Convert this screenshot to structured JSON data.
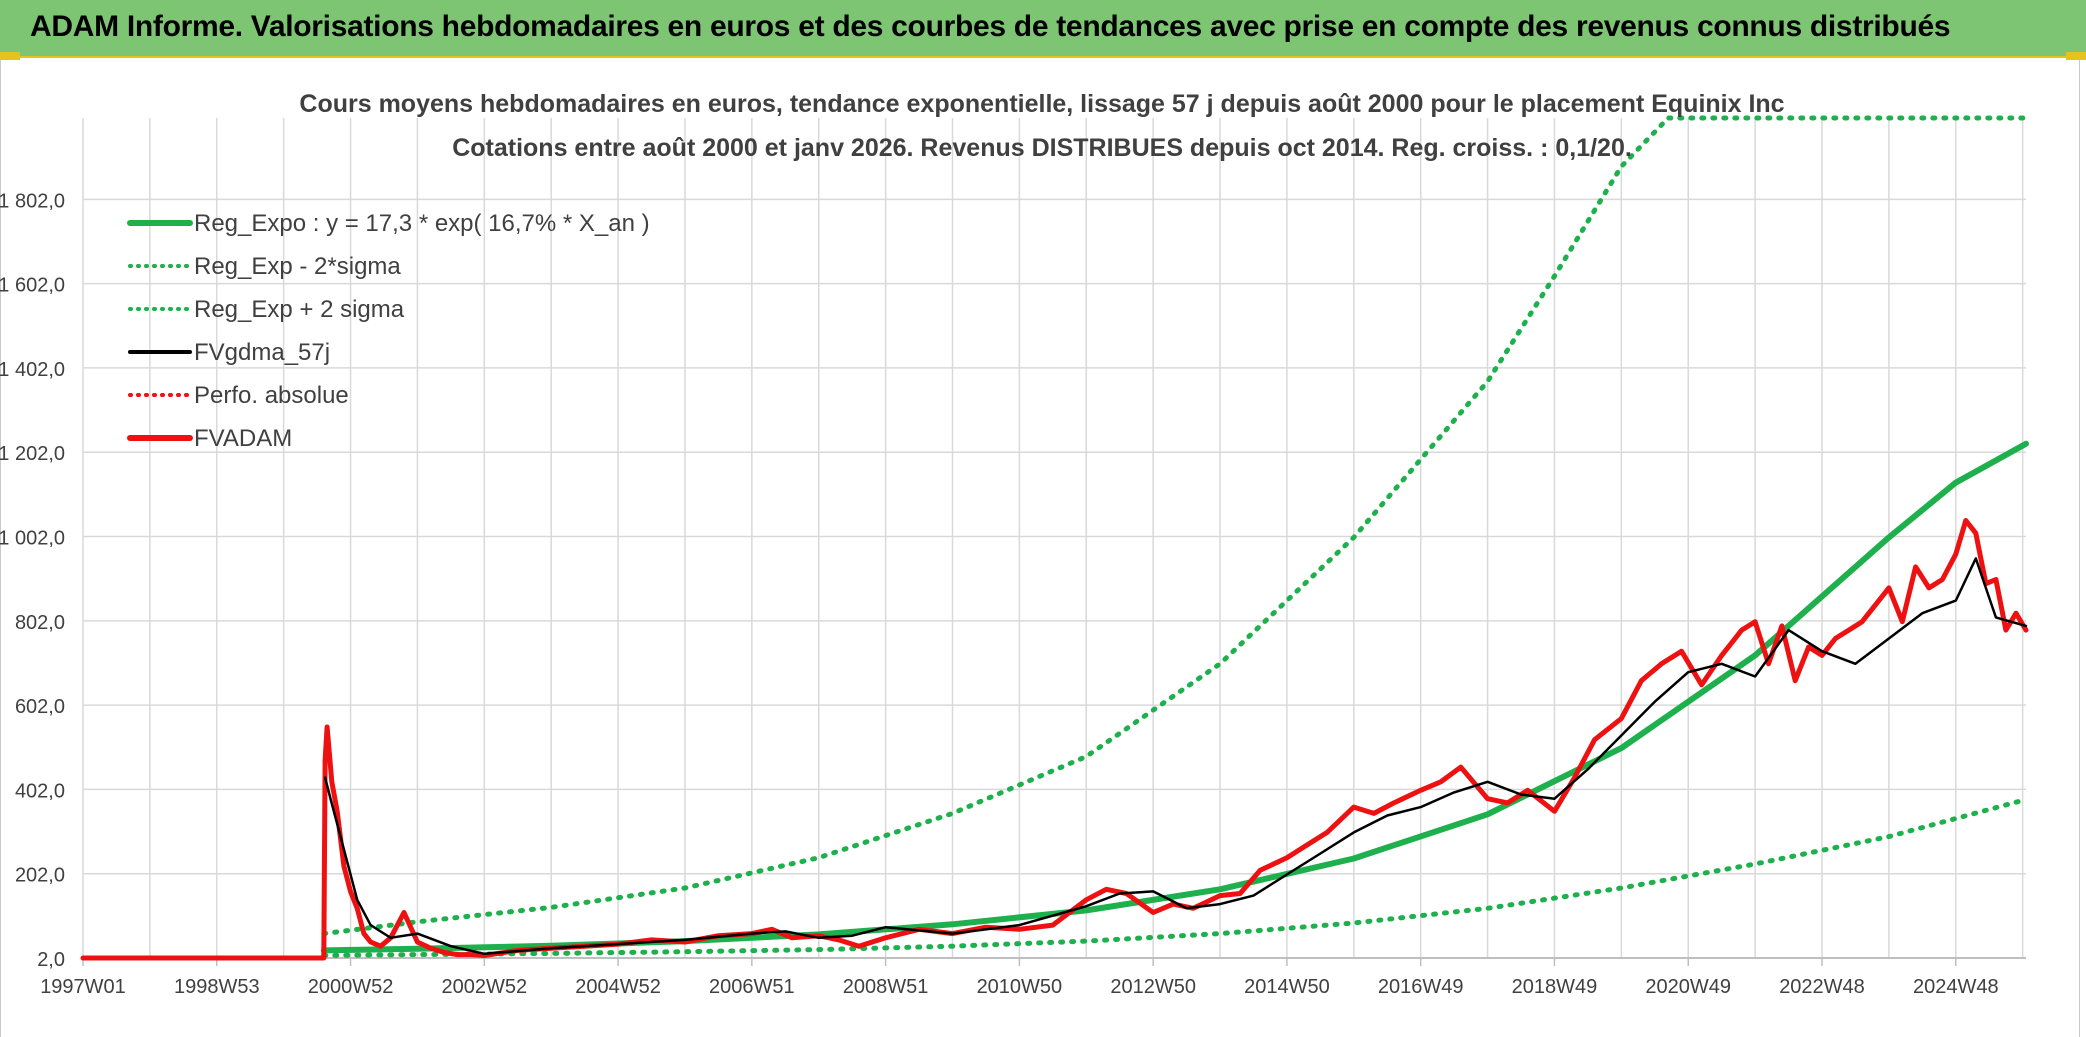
{
  "header": {
    "title": "ADAM Informe. Valorisations hebdomadaires en euros et des courbes de tendances avec prise en compte des revenus connus distribués"
  },
  "colors": {
    "banner": "#7dc572",
    "accent": "#e6c21c",
    "green": "#1fb04e",
    "red": "#ee1111",
    "black": "#000000",
    "grid": "#d9d9d9",
    "text": "#404040"
  },
  "chart_data": {
    "type": "line",
    "title_line1": "Cours moyens hebdomadaires en euros, tendance exponentielle, lissage 57 j depuis août 2000 pour le placement Equinix Inc",
    "title_line2": "Cotations entre août 2000 et janv 2026. Revenus DISTRIBUES depuis oct 2014. Reg. croiss. : 0,1/20.",
    "xlabel": "",
    "ylabel": "",
    "x_range": [
      1997.0,
      2026.05
    ],
    "ylim": [
      2.0,
      1995.0
    ],
    "grid": true,
    "legend_position": "top-left",
    "x_tick_labels": [
      "1997W01",
      "1998W53",
      "2000W52",
      "2002W52",
      "2004W52",
      "2006W51",
      "2008W51",
      "2010W50",
      "2012W50",
      "2014W50",
      "2016W49",
      "2018W49",
      "2020W49",
      "2022W48",
      "2024W48"
    ],
    "x_tick_values": [
      1997.0,
      1999.0,
      2001.0,
      2003.0,
      2005.0,
      2007.0,
      2009.0,
      2011.0,
      2013.0,
      2015.0,
      2017.0,
      2019.0,
      2021.0,
      2023.0,
      2025.0
    ],
    "y_tick_labels": [
      "2,0",
      "202,0",
      "402,0",
      "602,0",
      "802,0",
      "1 002,0",
      "1 202,0",
      "1 402,0",
      "1 602,0",
      "1 802,0"
    ],
    "y_tick_values": [
      2,
      202,
      402,
      602,
      802,
      1002,
      1202,
      1402,
      1602,
      1802
    ],
    "legend": [
      {
        "label": "Reg_Expo : y = 17,3 * exp( 16,7% *  X_an )",
        "color": "#1fb04e",
        "style": "solid-thick"
      },
      {
        "label": "Reg_Exp - 2*sigma",
        "color": "#1fb04e",
        "style": "dotted"
      },
      {
        "label": "Reg_Exp + 2 sigma",
        "color": "#1fb04e",
        "style": "dotted"
      },
      {
        "label": "FVgdma_57j",
        "color": "#000000",
        "style": "solid"
      },
      {
        "label": "Perfo. absolue",
        "color": "#ee1111",
        "style": "dotted"
      },
      {
        "label": "FVADAM",
        "color": "#ee1111",
        "style": "solid-thick"
      }
    ],
    "series": [
      {
        "name": "Reg_Expo",
        "x": [
          2000.6,
          2002.0,
          2004.0,
          2006.0,
          2008.0,
          2010.0,
          2012.0,
          2014.0,
          2016.0,
          2018.0,
          2020.0,
          2022.0,
          2024.0,
          2025.0,
          2026.05
        ],
        "y": [
          20,
          24,
          31,
          42,
          58,
          82,
          115,
          165,
          238,
          343,
          500,
          720,
          1000,
          1130,
          1222
        ]
      },
      {
        "name": "Reg_Exp - 2*sigma",
        "x": [
          2000.6,
          2002.0,
          2004.0,
          2006.0,
          2008.0,
          2010.0,
          2012.0,
          2014.0,
          2016.0,
          2018.0,
          2020.0,
          2022.0,
          2024.0,
          2026.05
        ],
        "y": [
          8,
          10,
          13,
          17,
          22,
          30,
          42,
          60,
          85,
          120,
          168,
          225,
          290,
          378
        ]
      },
      {
        "name": "Reg_Exp + 2 sigma",
        "x": [
          2000.6,
          2002.0,
          2004.0,
          2006.0,
          2008.0,
          2010.0,
          2012.0,
          2014.0,
          2016.0,
          2018.0,
          2019.0,
          2020.0,
          2020.7,
          2021.05,
          2022.0,
          2024.0,
          2026.05
        ],
        "y": [
          60,
          88,
          122,
          168,
          240,
          345,
          480,
          700,
          1000,
          1370,
          1620,
          1880,
          1995,
          1995,
          1995,
          1995,
          1995
        ]
      },
      {
        "name": "FVgdma_57j",
        "x": [
          2000.62,
          2000.7,
          2000.9,
          2001.1,
          2001.3,
          2001.6,
          2002.0,
          2002.5,
          2003.0,
          2004.0,
          2005.0,
          2006.0,
          2007.0,
          2007.5,
          2008.0,
          2008.5,
          2009.0,
          2010.0,
          2011.0,
          2012.0,
          2012.5,
          2013.0,
          2013.5,
          2014.0,
          2014.5,
          2015.0,
          2015.5,
          2016.0,
          2016.5,
          2017.0,
          2017.5,
          2018.0,
          2018.5,
          2019.0,
          2019.5,
          2020.0,
          2020.5,
          2021.0,
          2021.5,
          2022.0,
          2022.5,
          2023.0,
          2023.5,
          2024.0,
          2024.5,
          2025.0,
          2025.3,
          2025.6,
          2026.05
        ],
        "y": [
          430,
          380,
          260,
          140,
          80,
          50,
          60,
          30,
          12,
          25,
          35,
          45,
          60,
          65,
          50,
          55,
          75,
          60,
          80,
          125,
          155,
          160,
          120,
          130,
          150,
          200,
          250,
          300,
          340,
          360,
          395,
          420,
          390,
          380,
          450,
          530,
          610,
          680,
          700,
          670,
          780,
          730,
          700,
          760,
          820,
          850,
          950,
          810,
          790
        ]
      },
      {
        "name": "FVADAM",
        "x": [
          1997.0,
          2000.6,
          2000.62,
          2000.65,
          2000.72,
          2000.8,
          2000.9,
          2001.0,
          2001.1,
          2001.2,
          2001.3,
          2001.45,
          2001.6,
          2001.8,
          2002.0,
          2002.2,
          2002.4,
          2002.6,
          2002.8,
          2003.0,
          2003.5,
          2004.0,
          2004.5,
          2005.0,
          2005.5,
          2006.0,
          2006.5,
          2007.0,
          2007.3,
          2007.6,
          2008.0,
          2008.3,
          2008.6,
          2009.0,
          2009.5,
          2010.0,
          2010.5,
          2011.0,
          2011.5,
          2012.0,
          2012.3,
          2012.6,
          2013.0,
          2013.3,
          2013.6,
          2014.0,
          2014.3,
          2014.6,
          2015.0,
          2015.3,
          2015.6,
          2016.0,
          2016.3,
          2016.6,
          2017.0,
          2017.3,
          2017.6,
          2018.0,
          2018.3,
          2018.6,
          2019.0,
          2019.3,
          2019.6,
          2020.0,
          2020.3,
          2020.6,
          2020.9,
          2021.2,
          2021.5,
          2021.8,
          2022.0,
          2022.2,
          2022.4,
          2022.6,
          2022.8,
          2023.0,
          2023.2,
          2023.4,
          2023.6,
          2023.8,
          2024.0,
          2024.2,
          2024.4,
          2024.6,
          2024.8,
          2025.0,
          2025.15,
          2025.3,
          2025.45,
          2025.6,
          2025.75,
          2025.9,
          2026.05
        ],
        "y": [
          2,
          2,
          470,
          550,
          420,
          350,
          220,
          160,
          120,
          60,
          40,
          30,
          50,
          110,
          40,
          25,
          15,
          10,
          10,
          8,
          20,
          25,
          30,
          35,
          45,
          40,
          55,
          60,
          70,
          50,
          55,
          45,
          30,
          50,
          70,
          60,
          75,
          70,
          80,
          140,
          165,
          155,
          110,
          130,
          120,
          150,
          155,
          210,
          240,
          270,
          300,
          360,
          345,
          370,
          400,
          420,
          455,
          380,
          370,
          400,
          350,
          430,
          520,
          570,
          660,
          700,
          730,
          650,
          720,
          780,
          800,
          700,
          790,
          660,
          740,
          720,
          760,
          780,
          800,
          840,
          880,
          800,
          930,
          880,
          900,
          960,
          1040,
          1010,
          890,
          900,
          780,
          820,
          780
        ]
      }
    ]
  }
}
